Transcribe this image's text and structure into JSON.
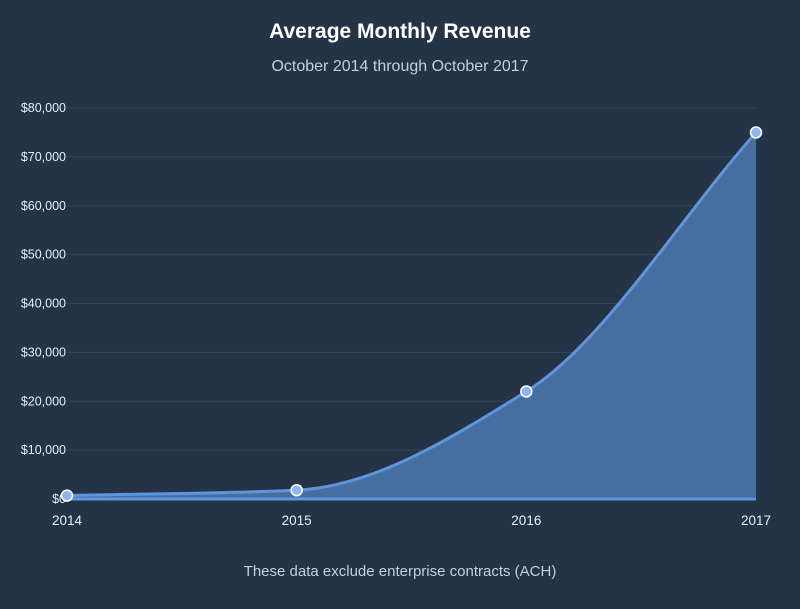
{
  "chart_data": {
    "type": "area",
    "title": "Average Monthly Revenue",
    "subtitle": "October 2014 through October 2017",
    "footnote": "These data exclude enterprise contracts (ACH)",
    "x": [
      "2014",
      "2015",
      "2016",
      "2017"
    ],
    "series": [
      {
        "values": [
          700,
          1800,
          22000,
          75000
        ]
      }
    ],
    "ylim": [
      0,
      80000
    ],
    "yticks": [
      0,
      10000,
      20000,
      30000,
      40000,
      50000,
      60000,
      70000,
      80000
    ],
    "ytick_labels": [
      "$0",
      "$10,000",
      "$20,000",
      "$30,000",
      "$40,000",
      "$50,000",
      "$60,000",
      "$70,000",
      "$80,000"
    ],
    "grid": true,
    "colors": {
      "background": "#253347",
      "line": "#5f95dc",
      "fill": "#4a74a8",
      "point": "#8fb7ee",
      "grid": "#33445c"
    }
  }
}
